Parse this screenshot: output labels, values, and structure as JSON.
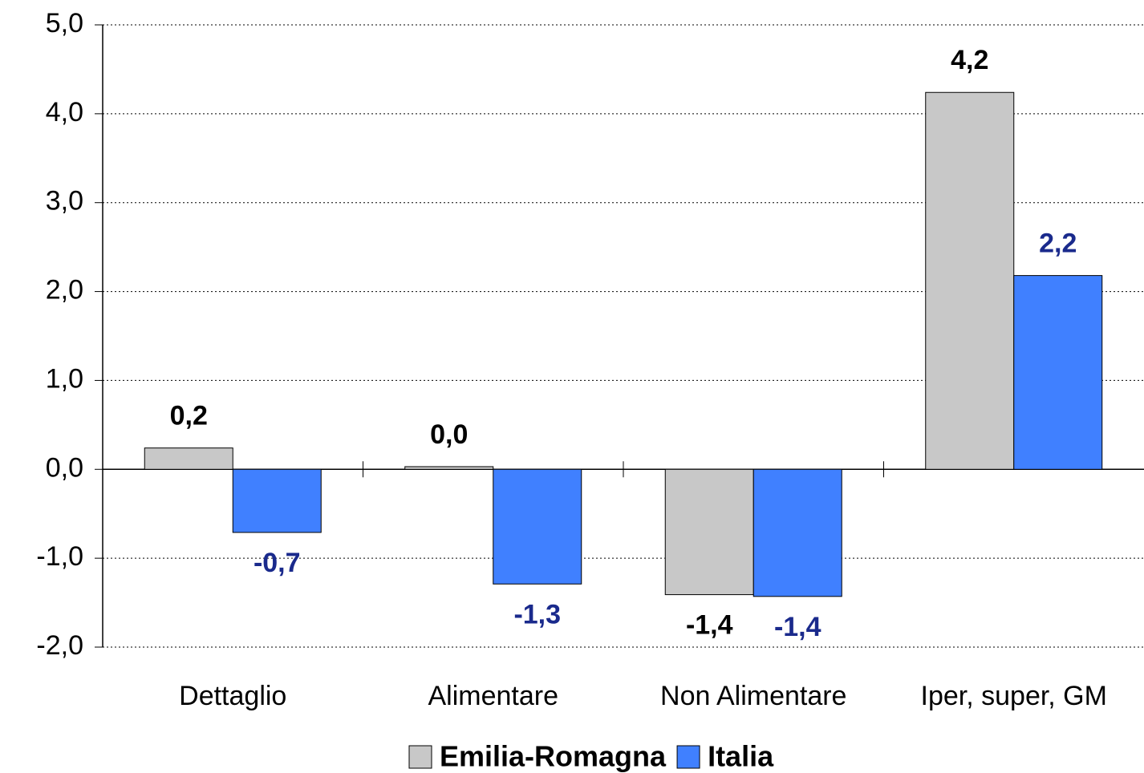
{
  "chart_data": {
    "type": "bar",
    "categories": [
      "Dettaglio",
      "Alimentare",
      "Non Alimentare",
      "Iper, super, GM"
    ],
    "series": [
      {
        "name": "Emilia-Romagna",
        "color": "#c8c8c8",
        "label_color": "#000000",
        "values": [
          0.24,
          0.03,
          -1.41,
          4.24
        ],
        "value_labels": [
          "0,2",
          "0,0",
          "-1,4",
          "4,2"
        ]
      },
      {
        "name": "Italia",
        "color": "#4080ff",
        "label_color": "#1a2a8c",
        "values": [
          -0.71,
          -1.29,
          -1.43,
          2.18
        ],
        "value_labels": [
          "-0,7",
          "-1,3",
          "-1,4",
          "2,2"
        ]
      }
    ],
    "ylim": [
      -2,
      5
    ],
    "yticks": [
      {
        "value": -2,
        "label": "-2,0"
      },
      {
        "value": -1,
        "label": "-1,0"
      },
      {
        "value": 0,
        "label": "0,0"
      },
      {
        "value": 1,
        "label": "1,0"
      },
      {
        "value": 2,
        "label": "2,0"
      },
      {
        "value": 3,
        "label": "3,0"
      },
      {
        "value": 4,
        "label": "4,0"
      },
      {
        "value": 5,
        "label": "5,0"
      }
    ],
    "grid": true,
    "legend": "bottom"
  }
}
